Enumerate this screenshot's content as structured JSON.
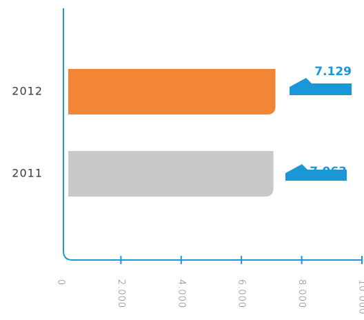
{
  "chart_data": {
    "type": "bar",
    "orientation": "horizontal",
    "categories": [
      "2012",
      "2011"
    ],
    "values": [
      7129,
      7063
    ],
    "data_labels": [
      "7.129",
      "7.063"
    ],
    "xlim": [
      0,
      10000
    ],
    "x_ticks": [
      0,
      2000,
      4000,
      6000,
      8000,
      10000
    ],
    "x_tick_labels": [
      "0",
      "2.000",
      "4.000",
      "6.000",
      "8.000",
      "10.000"
    ],
    "grid": false,
    "colors": {
      "bars": [
        "#f28634",
        "#c8c9cb"
      ],
      "axis": "#1a97d6",
      "callout": "#1a97d6"
    }
  }
}
